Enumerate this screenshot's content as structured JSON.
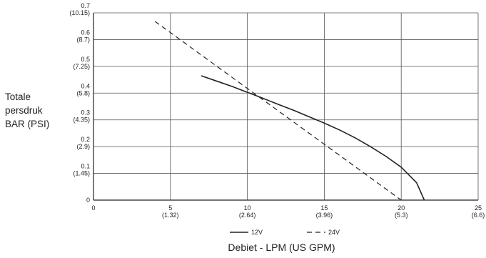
{
  "chart_data": {
    "type": "line",
    "title": "",
    "ylabel_lines": [
      "Totale",
      "persdruk",
      "BAR (PSI)"
    ],
    "xlabel": "Debiet - LPM (US GPM)",
    "xlim": [
      0,
      25
    ],
    "ylim": [
      0,
      0.7
    ],
    "grid": true,
    "legend_position": "bottom",
    "x_ticks": [
      {
        "value": 0,
        "primary": "0",
        "secondary": ""
      },
      {
        "value": 5,
        "primary": "5",
        "secondary": "(1.32)"
      },
      {
        "value": 10,
        "primary": "10",
        "secondary": "(2.64)"
      },
      {
        "value": 15,
        "primary": "15",
        "secondary": "(3.96)"
      },
      {
        "value": 20,
        "primary": "20",
        "secondary": "(5.3)"
      },
      {
        "value": 25,
        "primary": "25",
        "secondary": "(6.6)"
      }
    ],
    "y_ticks": [
      {
        "value": 0,
        "primary": "0",
        "secondary": ""
      },
      {
        "value": 0.1,
        "primary": "0.1",
        "secondary": "(1.45)"
      },
      {
        "value": 0.2,
        "primary": "0.2",
        "secondary": "(2.9)"
      },
      {
        "value": 0.3,
        "primary": "0.3",
        "secondary": "(4.35)"
      },
      {
        "value": 0.4,
        "primary": "0.4",
        "secondary": "(5.8)"
      },
      {
        "value": 0.5,
        "primary": "0.5",
        "secondary": "(7.25)"
      },
      {
        "value": 0.6,
        "primary": "0.6",
        "secondary": "(8.7)"
      },
      {
        "value": 0.7,
        "primary": "0.7",
        "secondary": "(10.15)"
      }
    ],
    "series": [
      {
        "name": "12V",
        "style": "solid",
        "color": "#222222",
        "x": [
          7,
          8,
          9,
          10,
          11,
          12,
          13,
          14,
          15,
          16,
          17,
          18,
          19,
          20,
          21,
          21.5
        ],
        "y": [
          0.465,
          0.445,
          0.425,
          0.403,
          0.381,
          0.358,
          0.336,
          0.312,
          0.288,
          0.262,
          0.233,
          0.2,
          0.164,
          0.123,
          0.065,
          0.0
        ]
      },
      {
        "name": "24V",
        "style": "dashed",
        "color": "#222222",
        "x": [
          4,
          20
        ],
        "y": [
          0.668,
          0.0
        ]
      }
    ]
  }
}
